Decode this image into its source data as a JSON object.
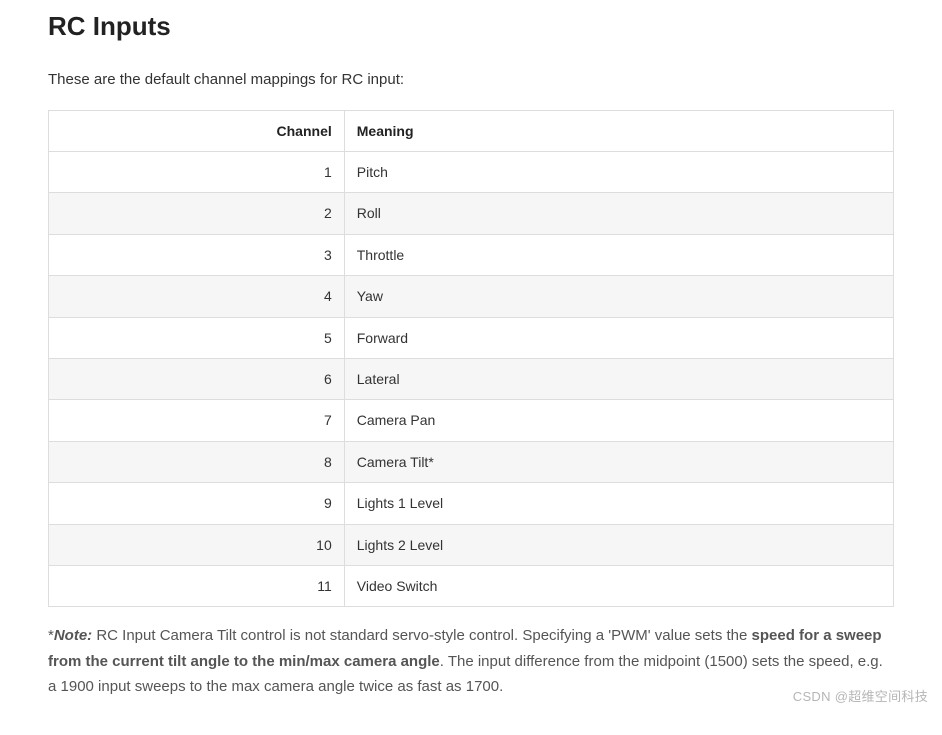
{
  "heading": "RC Inputs",
  "intro": "These are the default channel mappings for RC input:",
  "table": {
    "columns": [
      "Channel",
      "Meaning"
    ],
    "col_align": [
      "right",
      "left"
    ],
    "col_widths": [
      "35%",
      "65%"
    ],
    "header_bg": "#ffffff",
    "row_even_bg": "#f6f6f6",
    "row_odd_bg": "#ffffff",
    "border_color": "#dddddd",
    "font_size": 14,
    "rows": [
      [
        "1",
        "Pitch"
      ],
      [
        "2",
        "Roll"
      ],
      [
        "3",
        "Throttle"
      ],
      [
        "4",
        "Yaw"
      ],
      [
        "5",
        "Forward"
      ],
      [
        "6",
        "Lateral"
      ],
      [
        "7",
        "Camera Pan"
      ],
      [
        "8",
        "Camera Tilt*"
      ],
      [
        "9",
        "Lights 1 Level"
      ],
      [
        "10",
        "Lights 2 Level"
      ],
      [
        "11",
        "Video Switch"
      ]
    ]
  },
  "note": {
    "prefix": "*",
    "label": "Note:",
    "text1": " RC Input Camera Tilt control is not standard servo-style control. Specifying a 'PWM' value sets the ",
    "bold": "speed for a sweep from the current tilt angle to the min/max camera angle",
    "text2": ". The input difference from the midpoint (1500) sets the speed, e.g. a 1900 input sweeps to the max camera angle twice as fast as 1700."
  },
  "watermark": "CSDN @超维空间科技",
  "colors": {
    "text": "#333333",
    "heading": "#222222",
    "note_text": "#555555",
    "background": "#ffffff"
  },
  "typography": {
    "body_font": "Segoe UI, Helvetica, Arial, sans-serif",
    "body_size": 15,
    "heading_size": 26,
    "heading_weight": 700
  }
}
